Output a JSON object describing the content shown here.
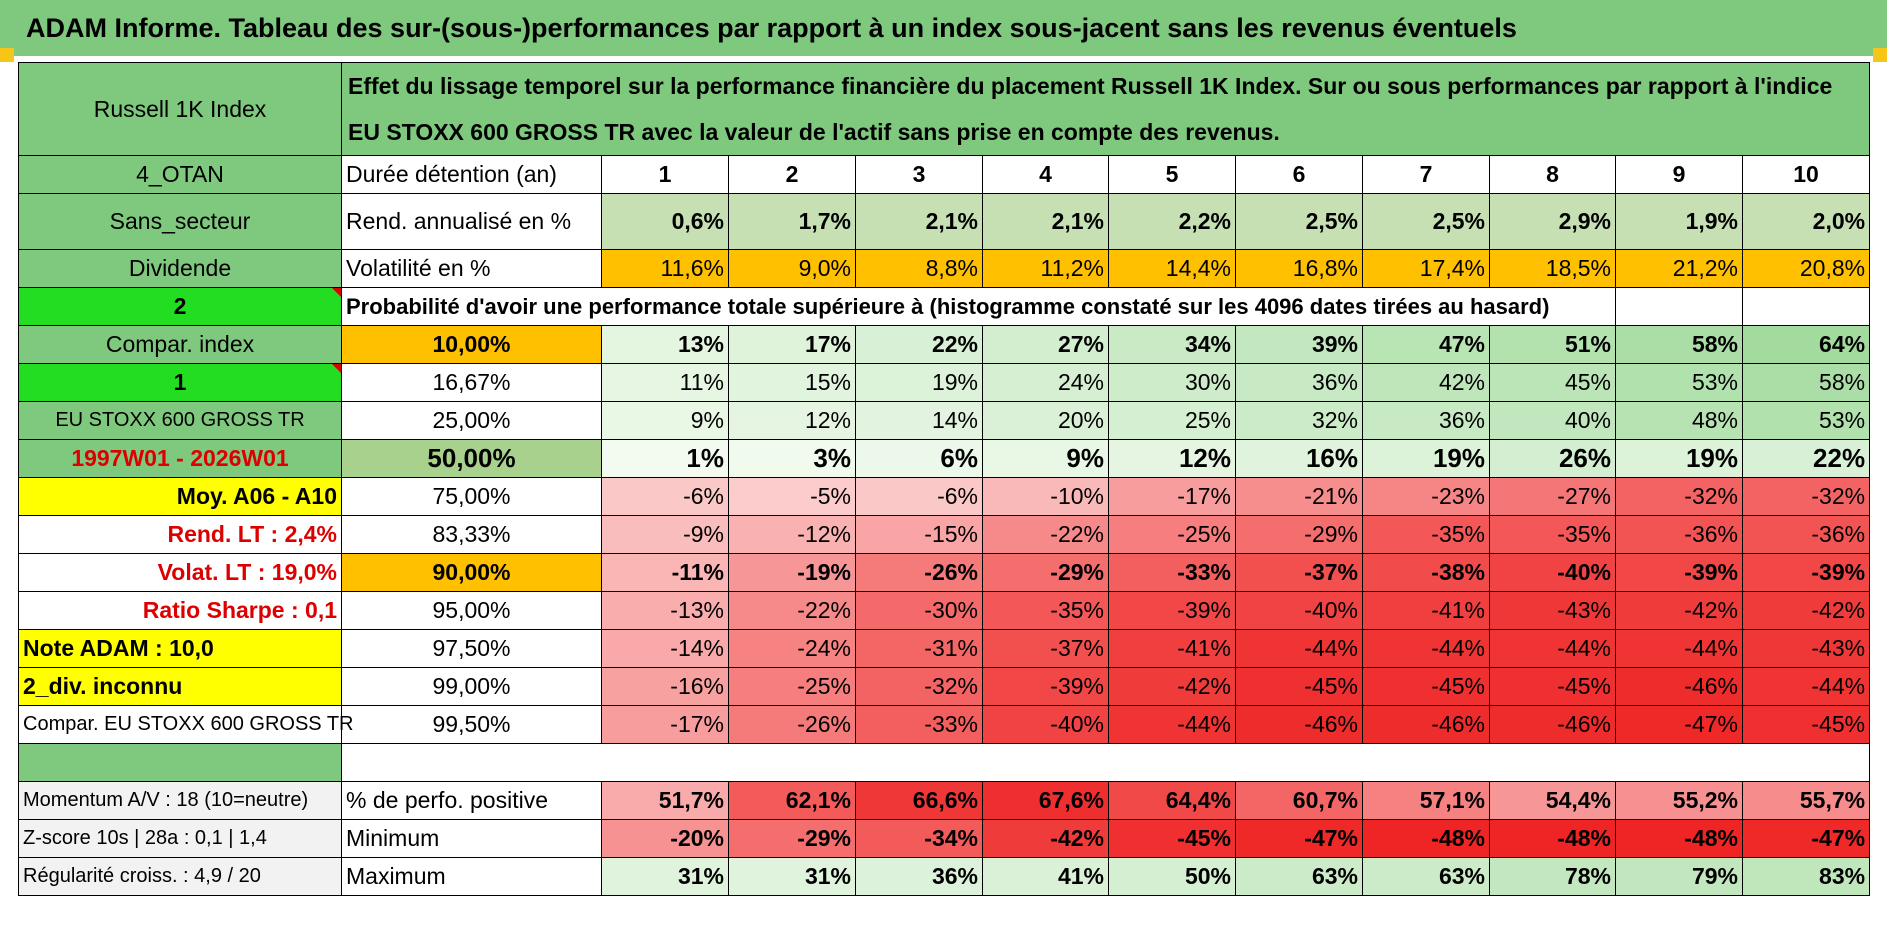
{
  "title": "ADAM Informe. Tableau des sur-(sous-)performances par rapport à un index sous-jacent sans les revenus éventuels",
  "header": {
    "asset": "Russell 1K Index",
    "description": "Effet du lissage temporel sur la performance financière du placement Russell 1K Index. Sur ou sous performances par rapport à l'indice EU STOXX 600 GROSS TR avec la valeur de l'actif sans prise en compte des revenus."
  },
  "left_labels": {
    "region": "4_OTAN",
    "sector": "Sans_secteur",
    "dividend": "Dividende",
    "counter_a": "2",
    "compar_index": "Compar. index",
    "counter_b": "1",
    "index_name": "EU STOXX 600 GROSS TR",
    "period": "1997W01 - 2026W01",
    "moy": "Moy. A06 - A10",
    "rend_lt": "Rend. LT :   2,4%",
    "volat_lt": "Volat. LT :   19,0%",
    "sharpe": "Ratio Sharpe :    0,1",
    "note": "Note ADAM : 10,0",
    "div": "2_div. inconnu",
    "compar_full": "Compar. EU STOXX 600 GROSS TR",
    "momentum": "Momentum A/V : 18 (10=neutre)",
    "zscore": "Z-score 10s | 28a : 0,1 | 1,4",
    "regularite": "Régularité croiss. : 4,9 / 20"
  },
  "row_labels": {
    "duration": "Durée détention (an)",
    "rend": "Rend. annualisé en %",
    "volat": "Volatilité en %",
    "proba": "Probabilité d'avoir une performance totale supérieure à (histogramme constaté sur les 4096 dates tirées au hasard)",
    "pos": "% de perfo. positive",
    "min": "Minimum",
    "max": "Maximum"
  },
  "years": [
    "1",
    "2",
    "3",
    "4",
    "5",
    "6",
    "7",
    "8",
    "9",
    "10"
  ],
  "rend": [
    "0,6%",
    "1,7%",
    "2,1%",
    "2,1%",
    "2,2%",
    "2,5%",
    "2,5%",
    "2,9%",
    "1,9%",
    "2,0%"
  ],
  "volat": [
    "11,6%",
    "9,0%",
    "8,8%",
    "11,2%",
    "14,4%",
    "16,8%",
    "17,4%",
    "18,5%",
    "21,2%",
    "20,8%"
  ],
  "quantiles": [
    {
      "q": "10,00%",
      "vals": [
        "13%",
        "17%",
        "22%",
        "27%",
        "34%",
        "39%",
        "47%",
        "51%",
        "58%",
        "64%"
      ],
      "bold": true
    },
    {
      "q": "16,67%",
      "vals": [
        "11%",
        "15%",
        "19%",
        "24%",
        "30%",
        "36%",
        "42%",
        "45%",
        "53%",
        "58%"
      ],
      "bold": false
    },
    {
      "q": "25,00%",
      "vals": [
        "9%",
        "12%",
        "14%",
        "20%",
        "25%",
        "32%",
        "36%",
        "40%",
        "48%",
        "53%"
      ],
      "bold": false
    },
    {
      "q": "50,00%",
      "vals": [
        "1%",
        "3%",
        "6%",
        "9%",
        "12%",
        "16%",
        "19%",
        "26%",
        "19%",
        "22%"
      ],
      "bold": true
    },
    {
      "q": "75,00%",
      "vals": [
        "-6%",
        "-5%",
        "-6%",
        "-10%",
        "-17%",
        "-21%",
        "-23%",
        "-27%",
        "-32%",
        "-32%"
      ],
      "bold": false
    },
    {
      "q": "83,33%",
      "vals": [
        "-9%",
        "-12%",
        "-15%",
        "-22%",
        "-25%",
        "-29%",
        "-35%",
        "-35%",
        "-36%",
        "-36%"
      ],
      "bold": false
    },
    {
      "q": "90,00%",
      "vals": [
        "-11%",
        "-19%",
        "-26%",
        "-29%",
        "-33%",
        "-37%",
        "-38%",
        "-40%",
        "-39%",
        "-39%"
      ],
      "bold": true
    },
    {
      "q": "95,00%",
      "vals": [
        "-13%",
        "-22%",
        "-30%",
        "-35%",
        "-39%",
        "-40%",
        "-41%",
        "-43%",
        "-42%",
        "-42%"
      ],
      "bold": false
    },
    {
      "q": "97,50%",
      "vals": [
        "-14%",
        "-24%",
        "-31%",
        "-37%",
        "-41%",
        "-44%",
        "-44%",
        "-44%",
        "-44%",
        "-43%"
      ],
      "bold": false
    },
    {
      "q": "99,00%",
      "vals": [
        "-16%",
        "-25%",
        "-32%",
        "-39%",
        "-42%",
        "-45%",
        "-45%",
        "-45%",
        "-46%",
        "-44%"
      ],
      "bold": false
    },
    {
      "q": "99,50%",
      "vals": [
        "-17%",
        "-26%",
        "-33%",
        "-40%",
        "-44%",
        "-46%",
        "-46%",
        "-46%",
        "-47%",
        "-45%"
      ],
      "bold": false
    }
  ],
  "pos": [
    "51,7%",
    "62,1%",
    "66,6%",
    "67,6%",
    "64,4%",
    "60,7%",
    "57,1%",
    "54,4%",
    "55,2%",
    "55,7%"
  ],
  "min": [
    "-20%",
    "-29%",
    "-34%",
    "-42%",
    "-45%",
    "-47%",
    "-48%",
    "-48%",
    "-48%",
    "-47%"
  ],
  "max": [
    "31%",
    "31%",
    "36%",
    "41%",
    "50%",
    "63%",
    "63%",
    "78%",
    "79%",
    "83%"
  ],
  "colors": {
    "header_green": "#7fc97f",
    "lime": "#22dd22",
    "yellow": "#ffff00",
    "orange": "#ffc000",
    "positive": "#63be7b",
    "negative": "#f8696b",
    "red_text": "#dd0000"
  }
}
